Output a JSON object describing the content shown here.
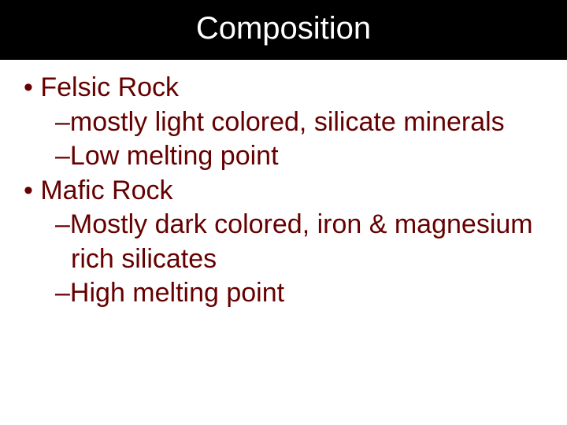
{
  "slide": {
    "title": "Composition",
    "title_color": "#ffffff",
    "title_fontsize": 40,
    "background_color": "#000000",
    "content_background": "#ffffff",
    "body_text_color": "#660000",
    "body_fontsize": 34,
    "bullets": [
      {
        "level": 1,
        "text": "Felsic Rock"
      },
      {
        "level": 2,
        "text": "mostly light colored, silicate minerals"
      },
      {
        "level": 2,
        "text": "Low melting point"
      },
      {
        "level": 1,
        "text": "Mafic Rock"
      },
      {
        "level": 2,
        "text": "Mostly dark colored, iron & magnesium rich silicates"
      },
      {
        "level": 2,
        "text": "High melting point"
      }
    ]
  }
}
